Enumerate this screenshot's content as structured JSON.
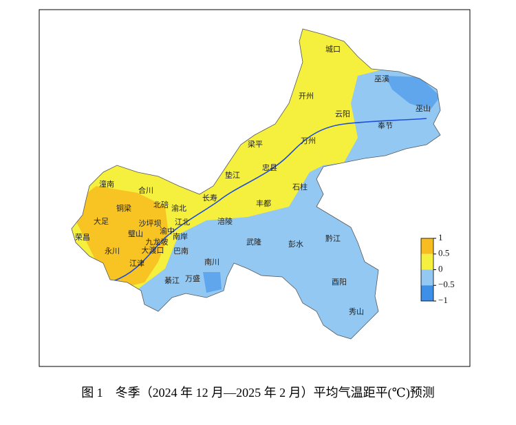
{
  "map": {
    "labels": [
      "城口",
      "巫溪",
      "开州",
      "巫山",
      "云阳",
      "奉节",
      "梁平",
      "万州",
      "忠县",
      "垫江",
      "潼南",
      "合川",
      "石柱",
      "长寿",
      "丰都",
      "铜梁",
      "北碚",
      "渝北",
      "大足",
      "沙坪坝",
      "江北",
      "涪陵",
      "璧山",
      "渝中",
      "南岸",
      "荣昌",
      "九龙坡",
      "武隆",
      "彭水",
      "黔江",
      "永川",
      "大渡口",
      "巴南",
      "江津",
      "南川",
      "綦江",
      "万盛",
      "酉阳",
      "秀山"
    ]
  },
  "legend": {
    "lim": [
      -1,
      1
    ],
    "ticks": [
      1,
      0.5,
      0,
      {
        "value": -0.5,
        "label": "−0.5"
      },
      {
        "value": -1,
        "label": "−1"
      }
    ],
    "colors": [
      "#f7bc1f",
      "#f5ef3e",
      "#93c8f2",
      "#3d8fe8"
    ]
  },
  "caption": "图 1　冬季（2024 年 12 月—2025 年 2 月）平均气温距平(℃)预测"
}
